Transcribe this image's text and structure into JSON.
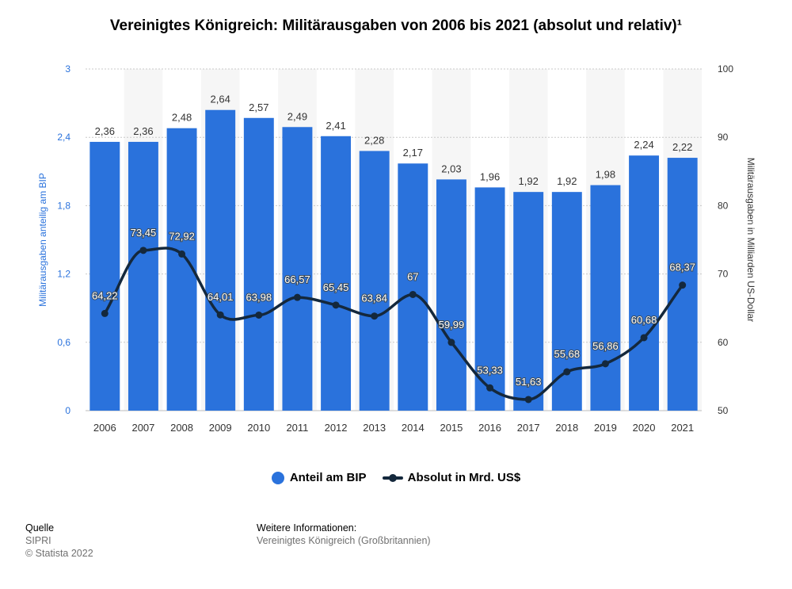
{
  "title": "Vereinigtes Königreich: Militärausgaben von 2006 bis 2021 (absolut und relativ)¹",
  "colors": {
    "bar": "#2a72dc",
    "line": "#14283c",
    "axis_left": "#2a72dc",
    "text": "#333333"
  },
  "chart_data": {
    "type": "bar",
    "categories": [
      "2006",
      "2007",
      "2008",
      "2009",
      "2010",
      "2011",
      "2012",
      "2013",
      "2014",
      "2015",
      "2016",
      "2017",
      "2018",
      "2019",
      "2020",
      "2021"
    ],
    "series": [
      {
        "name": "Anteil am BIP",
        "type": "bar",
        "axis": "left",
        "values": [
          2.36,
          2.36,
          2.48,
          2.64,
          2.57,
          2.49,
          2.41,
          2.28,
          2.17,
          2.03,
          1.96,
          1.92,
          1.92,
          1.98,
          2.24,
          2.22
        ],
        "labels": [
          "2,36",
          "2,36",
          "2,48",
          "2,64",
          "2,57",
          "2,49",
          "2,41",
          "2,28",
          "2,17",
          "2,03",
          "1,96",
          "1,92",
          "1,92",
          "1,98",
          "2,24",
          "2,22"
        ]
      },
      {
        "name": "Absolut in Mrd. US$",
        "type": "line",
        "axis": "right",
        "values": [
          64.22,
          73.45,
          72.92,
          64.01,
          63.98,
          66.57,
          65.45,
          63.84,
          67,
          59.99,
          53.33,
          51.63,
          55.68,
          56.86,
          60.68,
          68.37
        ],
        "labels": [
          "64,22",
          "73,45",
          "72,92",
          "64,01",
          "63,98",
          "66,57",
          "65,45",
          "63,84",
          "67",
          "59,99",
          "53,33",
          "51,63",
          "55,68",
          "56,86",
          "60,68",
          "68,37"
        ]
      }
    ],
    "y_left": {
      "label": "Militärausgaben anteilig am BIP",
      "min": 0,
      "max": 3,
      "ticks": [
        0,
        0.6,
        1.2,
        1.8,
        2.4,
        3
      ],
      "tick_labels": [
        "0",
        "0,6",
        "1,2",
        "1,8",
        "2,4",
        "3"
      ]
    },
    "y_right": {
      "label": "Militärausgaben in Milliarden US-Dollar",
      "min": 50,
      "max": 100,
      "ticks": [
        50,
        60,
        70,
        80,
        90,
        100
      ],
      "tick_labels": [
        "50",
        "60",
        "70",
        "80",
        "90",
        "100"
      ]
    },
    "grid": true,
    "legend": "bottom"
  },
  "legend": {
    "bar_label": "Anteil am BIP",
    "line_label": "Absolut in Mrd. US$"
  },
  "footer": {
    "source_heading": "Quelle",
    "source_lines": [
      "SIPRI",
      "© Statista 2022"
    ],
    "info_heading": "Weitere Informationen:",
    "info_lines": [
      "Vereinigtes Königreich (Großbritannien)"
    ]
  }
}
